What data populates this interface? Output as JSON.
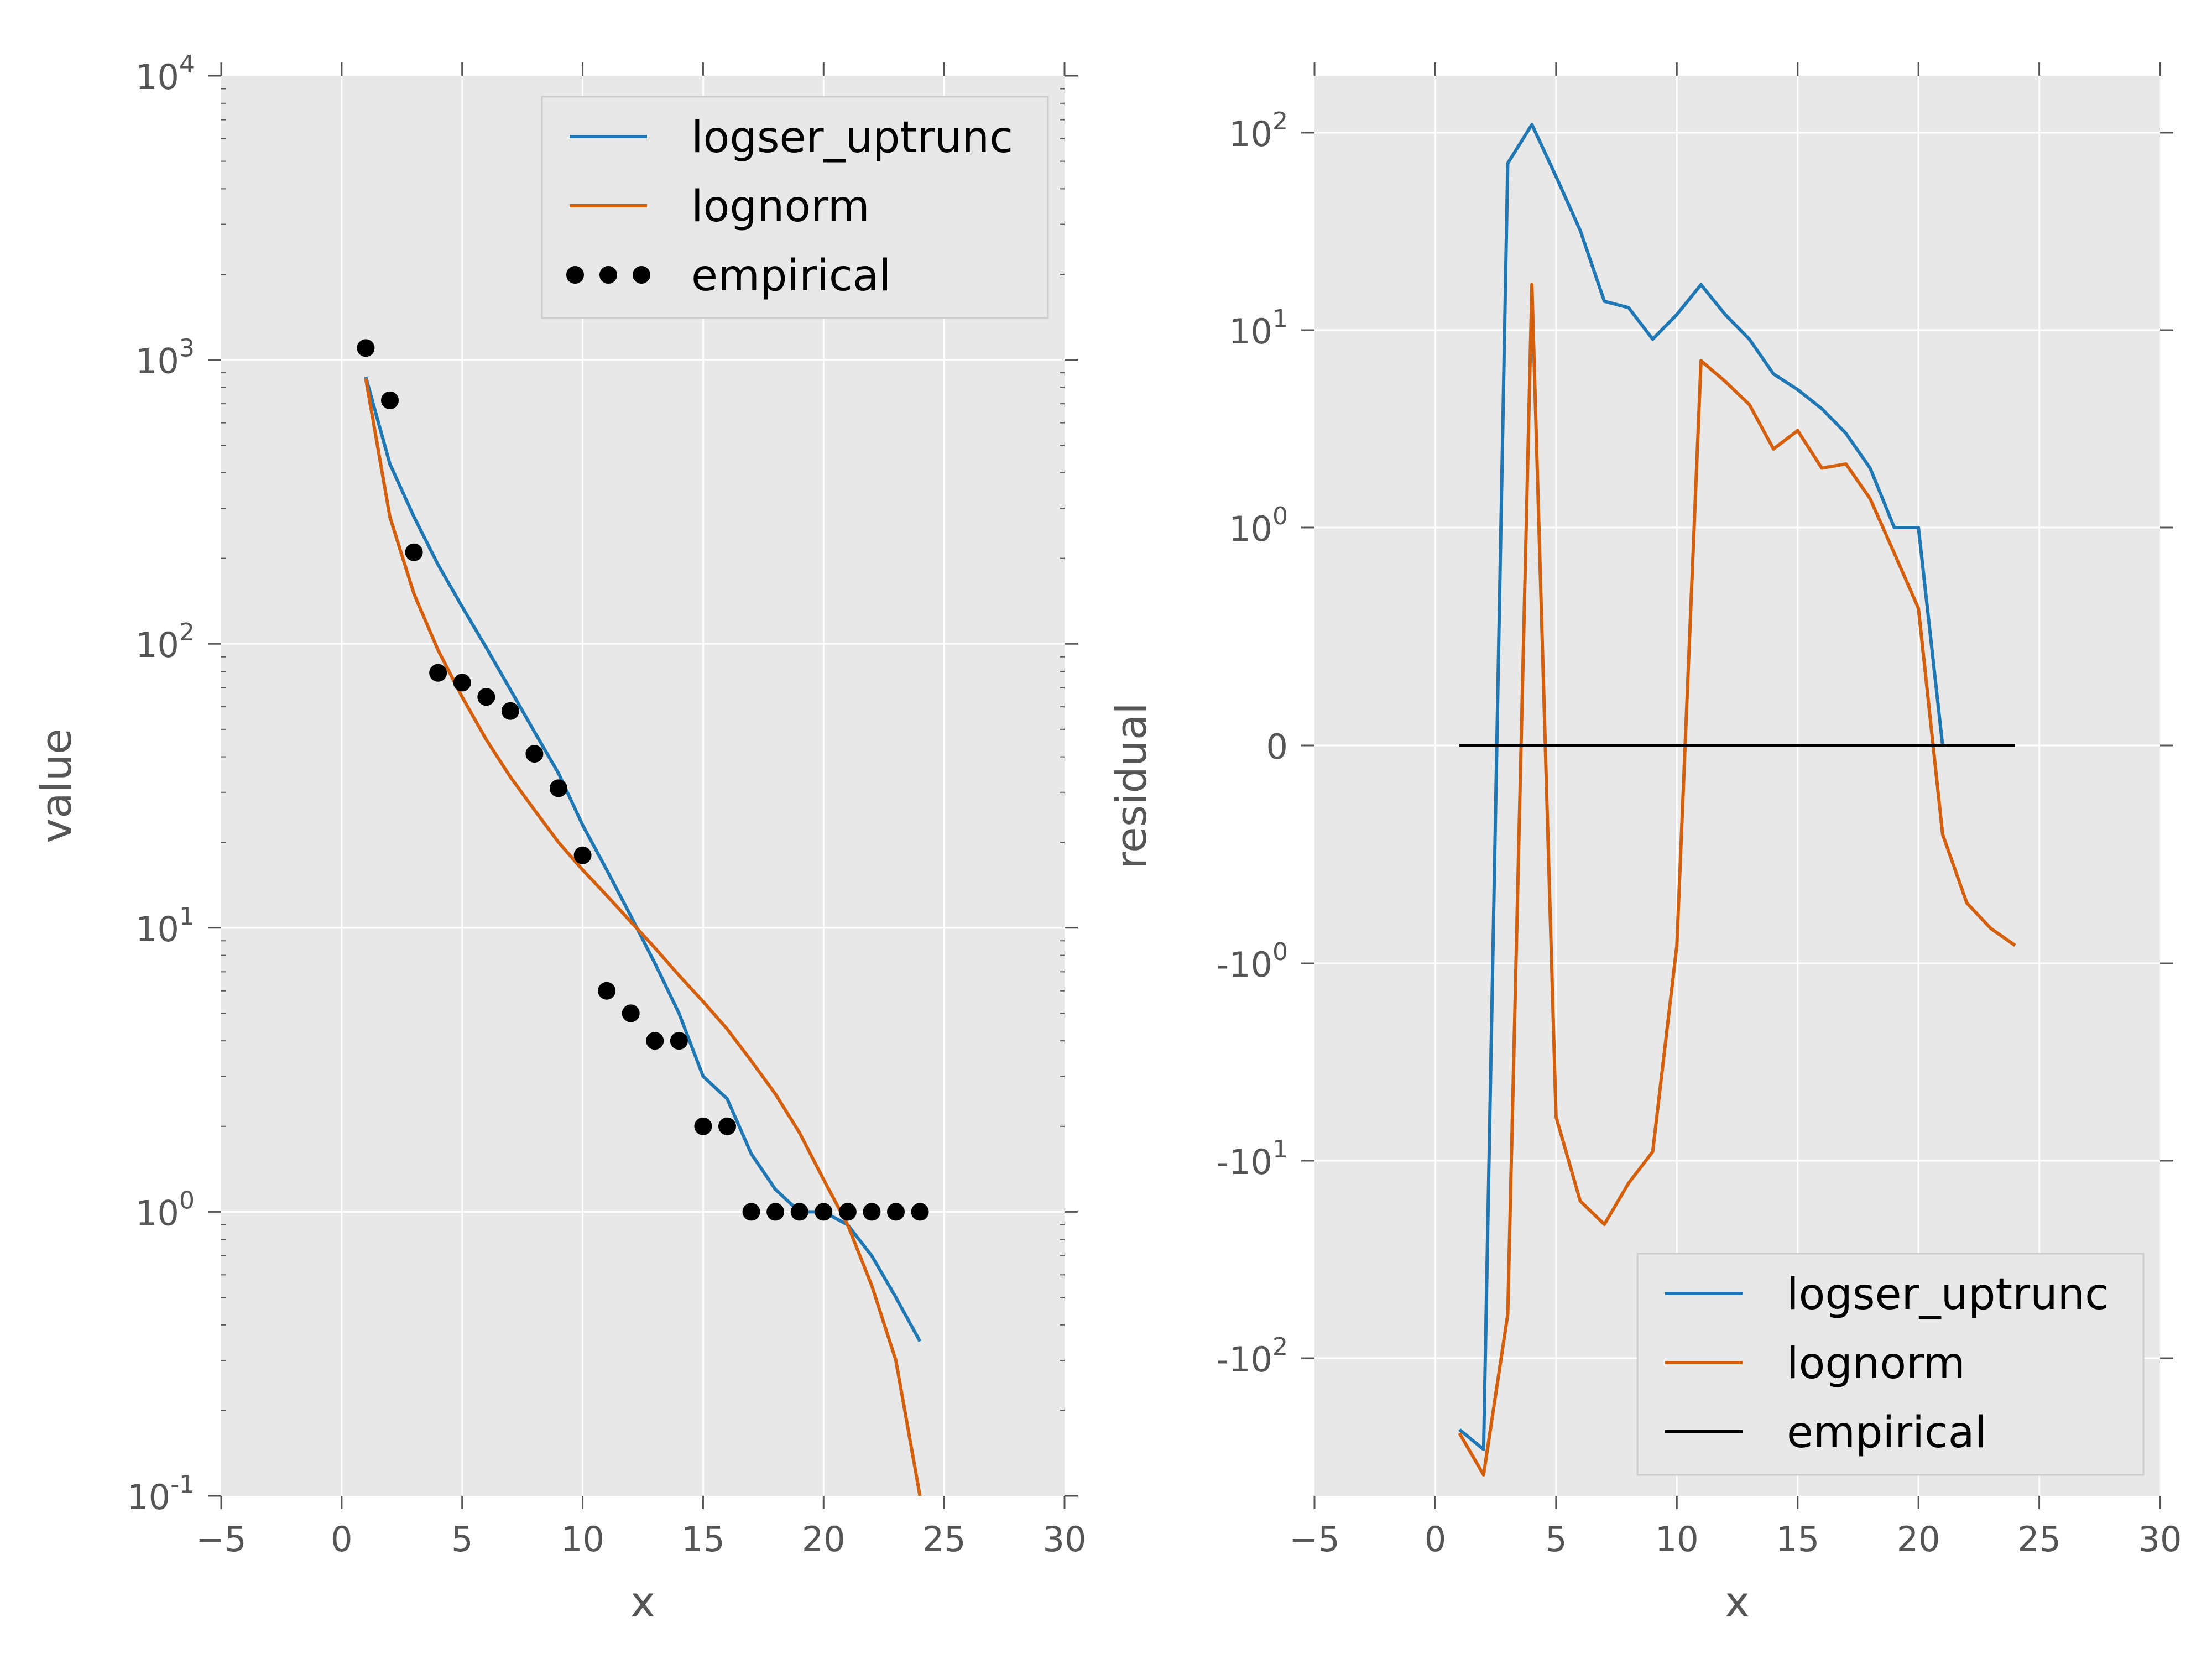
{
  "chart_data": [
    {
      "type": "line",
      "xlabel": "x",
      "ylabel": "value",
      "yscale": "log",
      "xlim": [
        -5,
        30
      ],
      "ylim": [
        0.1,
        10000
      ],
      "xticks": [
        -5,
        0,
        5,
        10,
        15,
        20,
        25,
        30
      ],
      "yticks": [
        {
          "value": 0.1,
          "base": "10",
          "exp": "-1"
        },
        {
          "value": 1,
          "base": "10",
          "exp": "0"
        },
        {
          "value": 10,
          "base": "10",
          "exp": "1"
        },
        {
          "value": 100,
          "base": "10",
          "exp": "2"
        },
        {
          "value": 1000,
          "base": "10",
          "exp": "3"
        },
        {
          "value": 10000,
          "base": "10",
          "exp": "4"
        }
      ],
      "grid": true,
      "legend": {
        "position": "top-right",
        "entries": [
          {
            "name": "logser_uptrunc",
            "kind": "line",
            "color": "#1f77b4"
          },
          {
            "name": "lognorm",
            "kind": "line",
            "color": "#d4600e"
          },
          {
            "name": "empirical",
            "kind": "marker",
            "color": "#000000"
          }
        ]
      },
      "series": [
        {
          "name": "logser_uptrunc",
          "color": "#1f77b4",
          "x": [
            1,
            2,
            3,
            4,
            5,
            6,
            7,
            8,
            9,
            10,
            11,
            12,
            13,
            14,
            15,
            16,
            17,
            18,
            19,
            20,
            21,
            22,
            23,
            24
          ],
          "y": [
            870,
            430,
            280,
            190,
            135,
            97,
            69,
            49,
            35,
            23,
            16,
            11,
            7.5,
            5,
            3,
            2.5,
            1.6,
            1.2,
            1,
            1,
            0.9,
            0.7,
            0.5,
            0.35
          ]
        },
        {
          "name": "lognorm",
          "color": "#d4600e",
          "x": [
            1,
            2,
            3,
            4,
            5,
            6,
            7,
            8,
            9,
            10,
            11,
            12,
            13,
            14,
            15,
            16,
            17,
            18,
            19,
            20,
            21,
            22,
            23,
            24
          ],
          "y": [
            860,
            280,
            150,
            95,
            65,
            46,
            34,
            26,
            20,
            16,
            13,
            10.5,
            8.5,
            6.8,
            5.5,
            4.4,
            3.4,
            2.6,
            1.9,
            1.3,
            0.9,
            0.55,
            0.3,
            0.1
          ]
        },
        {
          "name": "empirical",
          "color": "#000000",
          "marker": "circle",
          "x": [
            1,
            2,
            3,
            4,
            5,
            6,
            7,
            8,
            9,
            10,
            11,
            12,
            13,
            14,
            15,
            16,
            17,
            18,
            19,
            20,
            21,
            22,
            23,
            24
          ],
          "y": [
            1100,
            720,
            210,
            79,
            73,
            65,
            58,
            41,
            31,
            18,
            6,
            5,
            4,
            4,
            2,
            2,
            1,
            1,
            1,
            1,
            1,
            1,
            1,
            1
          ]
        }
      ]
    },
    {
      "type": "line",
      "xlabel": "x",
      "ylabel": "residual",
      "yscale": "symlog",
      "xlim": [
        -5,
        30
      ],
      "ylim": [
        -1000,
        1000
      ],
      "xticks": [
        -5,
        0,
        5,
        10,
        15,
        20,
        25,
        30
      ],
      "yticks": [
        {
          "value": -100,
          "base": "-10",
          "exp": "2"
        },
        {
          "value": -10,
          "base": "-10",
          "exp": "1"
        },
        {
          "value": -1,
          "base": "-10",
          "exp": "0"
        },
        {
          "value": 0,
          "base": "0",
          "exp": ""
        },
        {
          "value": 1,
          "base": "10",
          "exp": "0"
        },
        {
          "value": 10,
          "base": "10",
          "exp": "1"
        },
        {
          "value": 100,
          "base": "10",
          "exp": "2"
        }
      ],
      "grid": true,
      "legend": {
        "position": "lower-right",
        "entries": [
          {
            "name": "logser_uptrunc",
            "kind": "line",
            "color": "#1f77b4"
          },
          {
            "name": "lognorm",
            "kind": "line",
            "color": "#d4600e"
          },
          {
            "name": "empirical",
            "kind": "line",
            "color": "#000000"
          }
        ]
      },
      "series": [
        {
          "name": "logser_uptrunc",
          "color": "#1f77b4",
          "x": [
            1,
            2,
            3,
            4,
            5,
            6,
            7,
            8,
            9,
            10,
            11,
            12,
            13,
            14,
            15,
            16,
            17,
            18,
            19,
            20,
            21,
            22,
            23,
            24
          ],
          "y": [
            -230,
            -290,
            70,
            110,
            60,
            32,
            14,
            13,
            9,
            12,
            17,
            12,
            9,
            6,
            5,
            4,
            3,
            2,
            1,
            1,
            0,
            0,
            0,
            0
          ]
        },
        {
          "name": "lognorm",
          "color": "#d4600e",
          "x": [
            1,
            2,
            3,
            4,
            5,
            6,
            7,
            8,
            9,
            10,
            11,
            12,
            13,
            14,
            15,
            16,
            17,
            18,
            19,
            20,
            21,
            22,
            23,
            24
          ],
          "y": [
            -240,
            -390,
            -60,
            17,
            -6,
            -16,
            -21,
            -13,
            -9,
            -0.7,
            7,
            5.5,
            4.2,
            2.5,
            3.1,
            2,
            2.1,
            1.4,
            0.6,
            0.2,
            -0.1,
            -0.3,
            -0.5,
            -0.7
          ]
        },
        {
          "name": "empirical",
          "color": "#000000",
          "x": [
            1,
            2,
            3,
            4,
            5,
            6,
            7,
            8,
            9,
            10,
            11,
            12,
            13,
            14,
            15,
            16,
            17,
            18,
            19,
            20,
            21,
            22,
            23,
            24
          ],
          "y": [
            0,
            0,
            0,
            0,
            0,
            0,
            0,
            0,
            0,
            0,
            0,
            0,
            0,
            0,
            0,
            0,
            0,
            0,
            0,
            0,
            0,
            0,
            0,
            0
          ]
        }
      ]
    }
  ]
}
